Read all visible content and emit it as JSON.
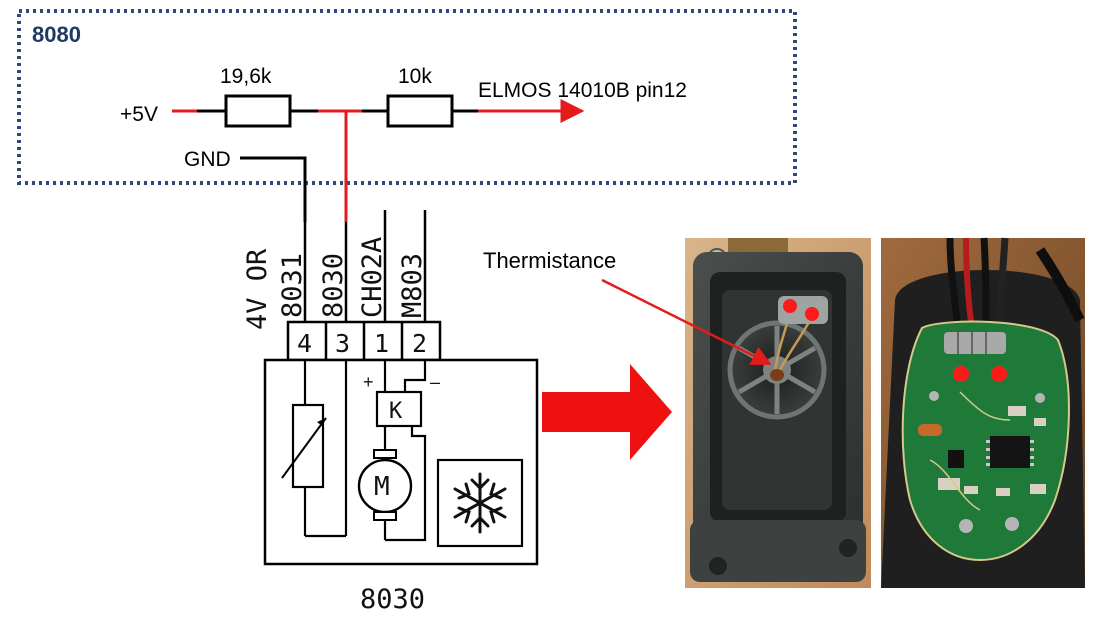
{
  "box": {
    "label": "8080",
    "border_color": "#2f4a78",
    "label_color": "#1f3864"
  },
  "circuit": {
    "supply": "+5V",
    "resistor1": "19,6k",
    "resistor2": "10k",
    "output": "ELMOS 14010B pin12",
    "ground": "GND",
    "wire_color": "#e31b1b"
  },
  "connector": {
    "wire_labels": [
      "4V OR",
      "8031",
      "8030",
      "CH02A",
      "M803"
    ],
    "pins": [
      "4",
      "3",
      "1",
      "2"
    ],
    "plus": "+",
    "minus": "–",
    "relay": "K",
    "motor": "M",
    "part_number": "8030"
  },
  "photos": {
    "annotation": "Thermistance",
    "arrow_color": "#ee1111",
    "marker_color": "#ff1a1a"
  }
}
